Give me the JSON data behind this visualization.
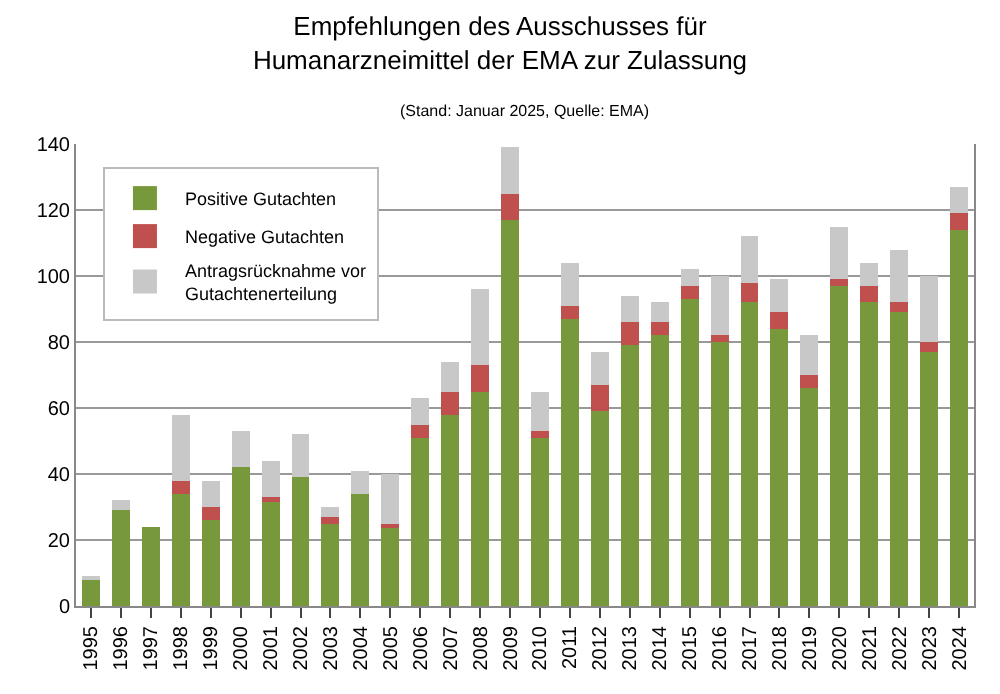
{
  "chart_data": {
    "type": "bar",
    "title": "Empfehlungen des Ausschusses für\nHumanarzneimittel der EMA zur Zulassung",
    "subtitle": "(Stand: Januar 2025, Quelle: EMA)",
    "categories": [
      "1995",
      "1996",
      "1997",
      "1998",
      "1999",
      "2000",
      "2001",
      "2002",
      "2003",
      "2004",
      "2005",
      "2006",
      "2007",
      "2008",
      "2009",
      "2010",
      "2011",
      "2012",
      "2013",
      "2014",
      "2015",
      "2016",
      "2017",
      "2018",
      "2019",
      "2020",
      "2021",
      "2022",
      "2023",
      "2024"
    ],
    "stacked": true,
    "series": [
      {
        "name": "Positive Gutachten",
        "color": "#77993b",
        "values": [
          8,
          29,
          24,
          34,
          26,
          42,
          32,
          39,
          25,
          34,
          24,
          51,
          58,
          65,
          117,
          51,
          87,
          59,
          79,
          82,
          93,
          80,
          92,
          84,
          66,
          97,
          92,
          89,
          77,
          114
        ]
      },
      {
        "name": "Negative Gutachten",
        "color": "#c0504d",
        "values": [
          0,
          0,
          0,
          4,
          4,
          0,
          1,
          0,
          2,
          0,
          1,
          4,
          7,
          8,
          8,
          2,
          4,
          8,
          7,
          4,
          4,
          2,
          6,
          5,
          4,
          2,
          5,
          3,
          3,
          5
        ]
      },
      {
        "name": "Antragsrücknahme vor\nGutachtenerteilung",
        "color": "#c8c8c8",
        "values": [
          1,
          3,
          0,
          20,
          8,
          11,
          11,
          13,
          3,
          7,
          15,
          8,
          9,
          23,
          14,
          12,
          13,
          10,
          8,
          6,
          5,
          18,
          14,
          10,
          12,
          16,
          7,
          16,
          20,
          8
        ]
      }
    ],
    "ylim": [
      0,
      140
    ],
    "yticks": [
      0,
      20,
      40,
      60,
      80,
      100,
      120,
      140
    ],
    "grid": "y",
    "legend": "top left"
  }
}
